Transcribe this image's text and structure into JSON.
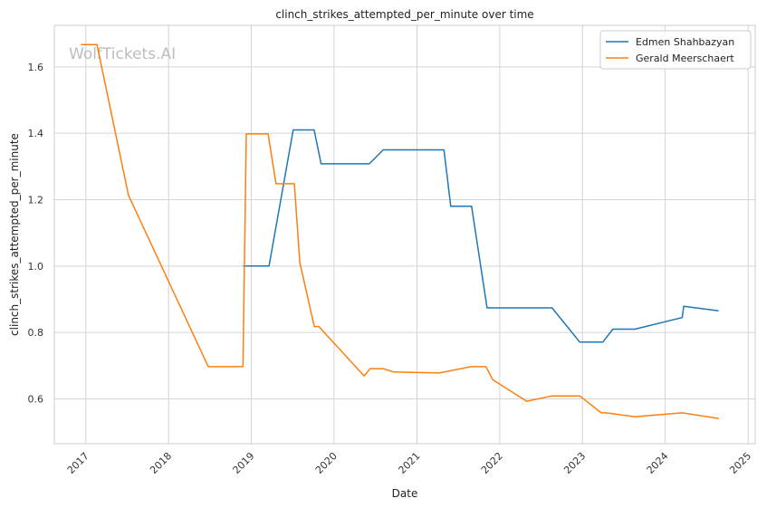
{
  "chart_data": {
    "type": "line",
    "title": "clinch_strikes_attempted_per_minute over time",
    "xlabel": "Date",
    "ylabel": "clinch_strikes_attempted_per_minute",
    "watermark": "WolfTickets.AI",
    "x_ticks": [
      "2017",
      "2018",
      "2019",
      "2020",
      "2021",
      "2022",
      "2023",
      "2024",
      "2025"
    ],
    "y_ticks": [
      "0.6",
      "0.8",
      "1.0",
      "1.2",
      "1.4",
      "1.6"
    ],
    "xlim": [
      "2016-08-15",
      "2025-02-01"
    ],
    "ylim": [
      0.465,
      1.725
    ],
    "grid": true,
    "legend_position": "top-right",
    "series": [
      {
        "name": "Edmen Shahbazyan",
        "color": "#1f77b4",
        "points": [
          [
            "2018-11-25",
            1.0
          ],
          [
            "2019-03-20",
            1.0
          ],
          [
            "2019-07-05",
            1.41
          ],
          [
            "2019-10-05",
            1.41
          ],
          [
            "2019-11-05",
            1.308
          ],
          [
            "2020-06-05",
            1.308
          ],
          [
            "2020-08-05",
            1.35
          ],
          [
            "2021-04-30",
            1.35
          ],
          [
            "2021-05-30",
            1.18
          ],
          [
            "2021-08-30",
            1.18
          ],
          [
            "2021-11-06",
            0.874
          ],
          [
            "2022-08-20",
            0.874
          ],
          [
            "2022-12-20",
            0.771
          ],
          [
            "2023-04-01",
            0.771
          ],
          [
            "2023-05-15",
            0.81
          ],
          [
            "2023-08-20",
            0.81
          ],
          [
            "2024-03-16",
            0.845
          ],
          [
            "2024-03-23",
            0.879
          ],
          [
            "2024-08-24",
            0.865
          ]
        ]
      },
      {
        "name": "Gerald Meerschaert",
        "color": "#ff7f0e",
        "points": [
          [
            "2016-12-10",
            1.667
          ],
          [
            "2017-02-19",
            1.667
          ],
          [
            "2017-07-08",
            1.213
          ],
          [
            "2018-06-25",
            0.697
          ],
          [
            "2018-11-25",
            0.697
          ],
          [
            "2018-12-10",
            1.398
          ],
          [
            "2019-03-16",
            1.398
          ],
          [
            "2019-04-20",
            1.248
          ],
          [
            "2019-07-10",
            1.248
          ],
          [
            "2019-08-03",
            1.011
          ],
          [
            "2019-10-06",
            0.818
          ],
          [
            "2019-10-26",
            0.818
          ],
          [
            "2020-05-13",
            0.669
          ],
          [
            "2020-06-08",
            0.691
          ],
          [
            "2020-08-05",
            0.691
          ],
          [
            "2020-09-20",
            0.681
          ],
          [
            "2021-04-10",
            0.678
          ],
          [
            "2021-08-28",
            0.697
          ],
          [
            "2021-11-01",
            0.697
          ],
          [
            "2021-12-01",
            0.658
          ],
          [
            "2022-04-30",
            0.593
          ],
          [
            "2022-08-20",
            0.609
          ],
          [
            "2022-12-20",
            0.609
          ],
          [
            "2023-03-25",
            0.558
          ],
          [
            "2023-04-15",
            0.558
          ],
          [
            "2023-08-20",
            0.546
          ],
          [
            "2024-03-16",
            0.558
          ],
          [
            "2024-08-24",
            0.541
          ]
        ]
      }
    ]
  }
}
